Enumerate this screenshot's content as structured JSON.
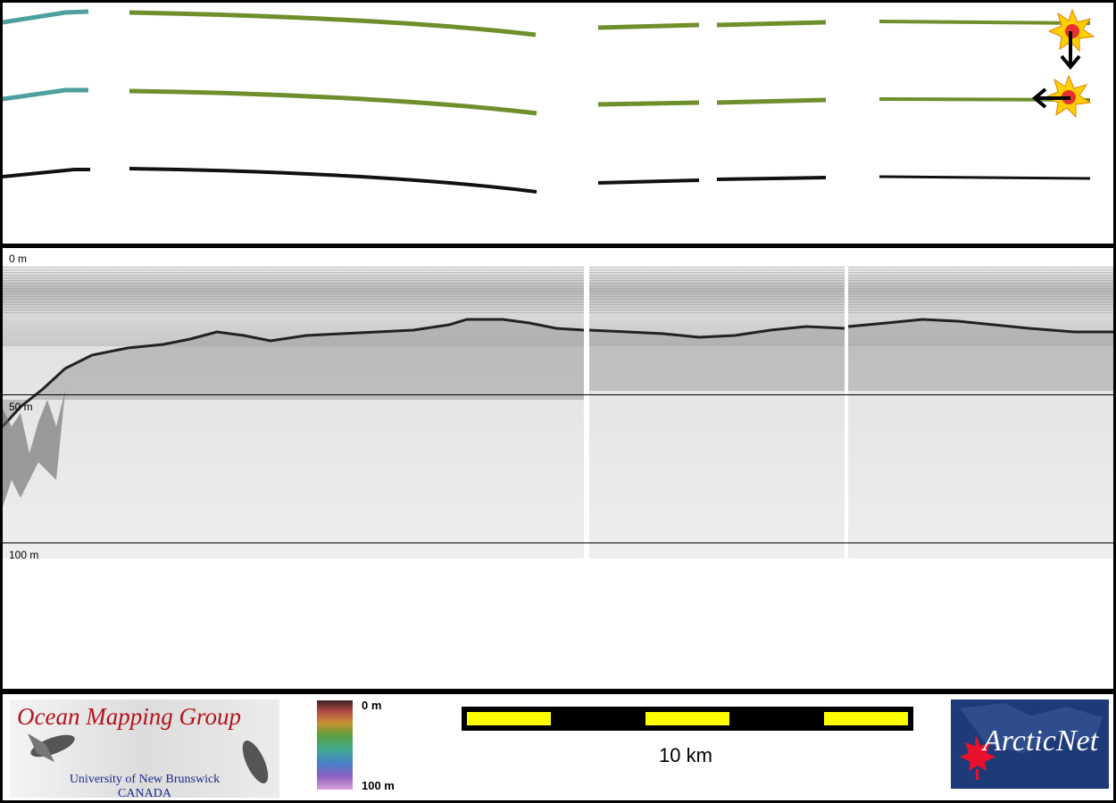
{
  "depth_labels": {
    "top": "0 m",
    "middle": "50 m",
    "bottom": "100 m"
  },
  "logos": {
    "ocean_mapping": {
      "title": "Ocean Mapping Group",
      "subtitle": "University of New Brunswick",
      "country": "CANADA"
    },
    "arcticnet": {
      "text": "ArcticNet"
    }
  },
  "colorbar": {
    "min_label": "0 m",
    "max_label": "100 m"
  },
  "scalebar": {
    "label": "10 km"
  },
  "colors": {
    "swath_green": "#6f8f2c",
    "swath_teal": "#4f9f9f",
    "scale_yellow": "#ffff00",
    "logo_red": "#b4141c",
    "logo_blue": "#1a2a8a"
  }
}
